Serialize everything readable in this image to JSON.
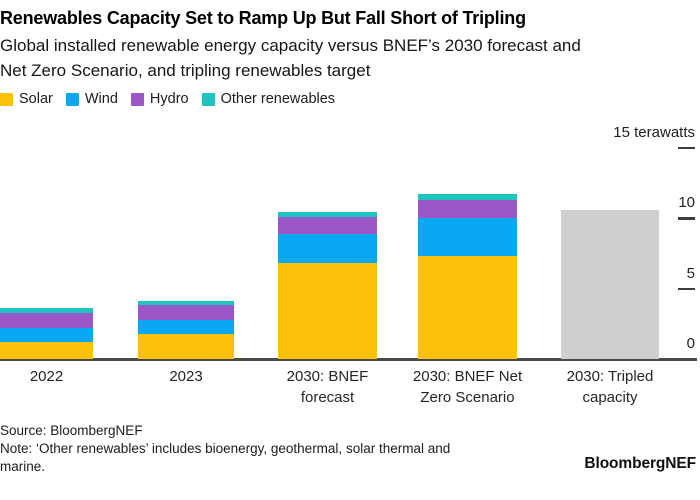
{
  "header": {
    "title": "Renewables Capacity Set to Ramp Up But Fall Short of Tripling",
    "subtitle_lines": [
      "Global installed renewable energy capacity versus BNEF’s 2030 forecast and",
      "Net Zero Scenario, and tripling renewables target"
    ]
  },
  "legend": {
    "items": [
      {
        "label": "Solar",
        "color": "#FBC10D"
      },
      {
        "label": "Wind",
        "color": "#0AA7F2"
      },
      {
        "label": "Hydro",
        "color": "#9B57C5"
      },
      {
        "label": "Other renewables",
        "color": "#1EC5BE"
      }
    ]
  },
  "axis": {
    "unit_label": "15 terawatts",
    "yticks": [
      {
        "value": 0,
        "label": "0"
      },
      {
        "value": 5,
        "label": "5"
      },
      {
        "value": 10,
        "label": "10"
      },
      {
        "value": 15,
        "label": "15 terawatts"
      }
    ]
  },
  "chart_data": {
    "type": "bar",
    "stacked": true,
    "title": "Renewables Capacity Set to Ramp Up But Fall Short of Tripling",
    "subtitle": "Global installed renewable energy capacity versus BNEF’s 2030 forecast and Net Zero Scenario, and tripling renewables target",
    "unit": "terawatts",
    "ylabel": "terawatts",
    "xlabel": "",
    "ylim": [
      0,
      15
    ],
    "yticks": [
      0,
      5,
      10,
      15
    ],
    "grid": false,
    "legend_position": "top",
    "categories": [
      "2022",
      "2023",
      "2030: BNEF forecast",
      "2030: BNEF Net Zero Scenario",
      "2030: Tripled capacity"
    ],
    "xlabels_lines": [
      [
        "2022"
      ],
      [
        "2023"
      ],
      [
        "2030: BNEF",
        "forecast"
      ],
      [
        "2030: BNEF Net",
        "Zero Scenario"
      ],
      [
        "2030: Tripled",
        "capacity"
      ]
    ],
    "series": [
      {
        "name": "Solar",
        "color": "#FBC10D",
        "values": [
          1.2,
          1.8,
          6.8,
          7.3,
          0
        ]
      },
      {
        "name": "Wind",
        "color": "#0AA7F2",
        "values": [
          1.0,
          0.95,
          2.1,
          2.7,
          0
        ]
      },
      {
        "name": "Hydro",
        "color": "#9B57C5",
        "values": [
          1.05,
          1.05,
          1.2,
          1.3,
          0
        ]
      },
      {
        "name": "Other renewables",
        "color": "#1EC5BE",
        "values": [
          0.35,
          0.35,
          0.3,
          0.4,
          0
        ]
      },
      {
        "name": "Tripled capacity target",
        "color": "#CFCFCF",
        "values": [
          0,
          0,
          0,
          0,
          10.55
        ]
      }
    ]
  },
  "footer": {
    "source": "Source: BloombergNEF",
    "note_lines": [
      "Note: ‘Other renewables’ includes bioenergy, geothermal, solar thermal and",
      "marine."
    ],
    "brand": "BloombergNEF"
  }
}
